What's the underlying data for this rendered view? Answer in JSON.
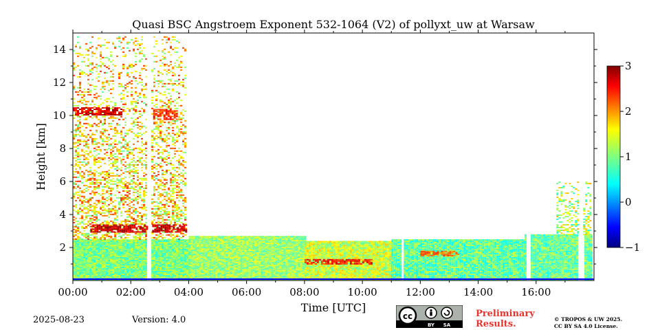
{
  "chart_data": {
    "type": "heatmap",
    "title": "Quasi BSC Angstroem Exponent 532-1064 (V2) of pollyxt_uw at Warsaw",
    "xlabel": "Time [UTC]",
    "ylabel": "Height [km]",
    "xlim": [
      0,
      18
    ],
    "ylim": [
      0,
      15
    ],
    "x_ticks": [
      {
        "value": 0,
        "label": "00:00"
      },
      {
        "value": 2,
        "label": "02:00"
      },
      {
        "value": 4,
        "label": "04:00"
      },
      {
        "value": 6,
        "label": "06:00"
      },
      {
        "value": 8,
        "label": "08:00"
      },
      {
        "value": 10,
        "label": "10:00"
      },
      {
        "value": 12,
        "label": "12:00"
      },
      {
        "value": 14,
        "label": "14:00"
      },
      {
        "value": 16,
        "label": "16:00"
      }
    ],
    "y_ticks": [
      {
        "value": 2,
        "label": "2"
      },
      {
        "value": 4,
        "label": "4"
      },
      {
        "value": 6,
        "label": "6"
      },
      {
        "value": 8,
        "label": "8"
      },
      {
        "value": 10,
        "label": "10"
      },
      {
        "value": 12,
        "label": "12"
      },
      {
        "value": 14,
        "label": "14"
      }
    ],
    "colorbar": {
      "range": [
        -1,
        3
      ],
      "ticks": [
        {
          "value": 3,
          "label": "3"
        },
        {
          "value": 2,
          "label": "2"
        },
        {
          "value": 1,
          "label": "1"
        },
        {
          "value": 0,
          "label": "0"
        },
        {
          "value": -1,
          "label": "−1"
        }
      ],
      "colormap": "jet"
    },
    "data_gaps_hours": [
      [
        2.55,
        2.7
      ],
      [
        11.35,
        11.4
      ],
      [
        15.65,
        15.75
      ],
      [
        17.45,
        17.6
      ]
    ],
    "regions": [
      {
        "x": [
          0.0,
          4.0
        ],
        "y": [
          0.0,
          2.5
        ],
        "value": 1.0,
        "noise": 0.35
      },
      {
        "x": [
          4.0,
          8.0
        ],
        "y": [
          0.0,
          2.7
        ],
        "value": 1.1,
        "noise": 0.35
      },
      {
        "x": [
          8.0,
          11.0
        ],
        "y": [
          0.0,
          2.4
        ],
        "value": 1.3,
        "noise": 0.45
      },
      {
        "x": [
          11.0,
          12.0
        ],
        "y": [
          0.0,
          1.0
        ],
        "value": 0.1,
        "noise": 0.4
      },
      {
        "x": [
          11.0,
          15.6
        ],
        "y": [
          0.0,
          2.5
        ],
        "value": 0.9,
        "noise": 0.4
      },
      {
        "x": [
          15.6,
          17.9
        ],
        "y": [
          0.0,
          2.8
        ],
        "value": 0.9,
        "noise": 0.4
      },
      {
        "x": [
          0.0,
          3.9
        ],
        "y": [
          2.5,
          14.8
        ],
        "value": 1.6,
        "noise": 0.75,
        "sparse": true
      },
      {
        "x": [
          16.7,
          17.9
        ],
        "y": [
          2.8,
          6.0
        ],
        "value": 1.2,
        "noise": 0.6,
        "sparse": true
      }
    ],
    "layers": [
      {
        "x": [
          0.0,
          1.7
        ],
        "y": [
          10.0,
          10.5
        ],
        "value": 2.6
      },
      {
        "x": [
          2.7,
          3.6
        ],
        "y": [
          9.8,
          10.4
        ],
        "value": 2.3
      },
      {
        "x": [
          0.6,
          3.9
        ],
        "y": [
          2.9,
          3.4
        ],
        "value": 2.7
      },
      {
        "x": [
          8.0,
          10.3
        ],
        "y": [
          1.0,
          1.3
        ],
        "value": 2.4
      },
      {
        "x": [
          12.0,
          13.3
        ],
        "y": [
          1.5,
          1.8
        ],
        "value": 2.1
      }
    ]
  },
  "footer": {
    "date": "2025-08-23",
    "version": "Version: 4.0",
    "preliminary_line1": "Preliminary",
    "preliminary_line2": "Results.",
    "license_line1": "© TROPOS & UW 2025.",
    "license_line2": "CC BY SA 4.0 License.",
    "cc_label": "cc",
    "by_label": "BY",
    "sa_label": "SA"
  }
}
